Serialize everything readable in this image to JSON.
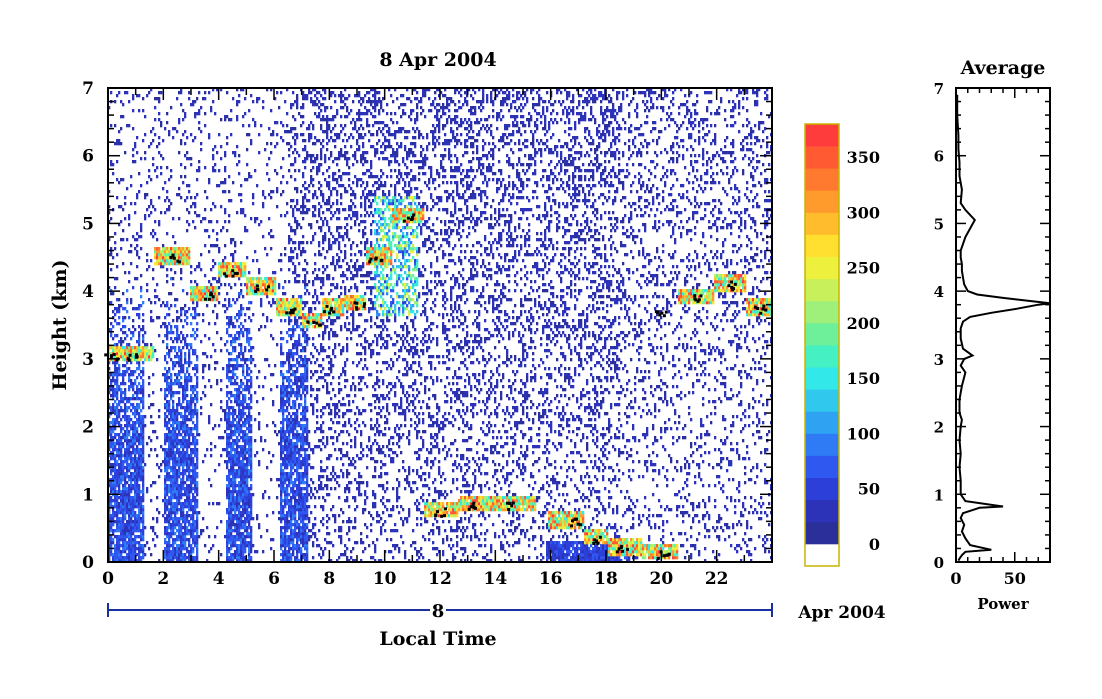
{
  "chart_data": [
    {
      "type": "heatmap",
      "title": "8 Apr 2004",
      "xlabel": "Local Time",
      "ylabel": "Height (km)",
      "xlim": [
        0,
        24
      ],
      "ylim": [
        0,
        7
      ],
      "x_ticks": [
        "0",
        "2",
        "4",
        "6",
        "8",
        "10",
        "12",
        "14",
        "16",
        "18",
        "20",
        "22"
      ],
      "y_ticks": [
        "0",
        "1",
        "2",
        "3",
        "4",
        "5",
        "6",
        "7"
      ],
      "date_axis": {
        "day_label": "8",
        "month_label": "Apr 2004"
      },
      "colorbar": {
        "ticks": [
          "0",
          "50",
          "100",
          "150",
          "200",
          "250",
          "300",
          "350"
        ],
        "range": [
          0,
          380
        ],
        "colors": [
          "#ffffff",
          "#2b2f9a",
          "#2d33b8",
          "#2c3fd8",
          "#2f58f0",
          "#2f7bf5",
          "#2fa2f2",
          "#31c8ee",
          "#33e8e8",
          "#45f0c2",
          "#6ef09b",
          "#9ef07a",
          "#c8f05a",
          "#eef03e",
          "#ffe030",
          "#ffbc2c",
          "#ff9a2c",
          "#ff7a2e",
          "#ff5a32",
          "#ff3c3c"
        ]
      },
      "layers": {
        "cloud_band_height_km": [
          {
            "x": 0.1,
            "y": 3.05
          },
          {
            "x": 0.8,
            "y": 3.05
          },
          {
            "x": 2.4,
            "y": 4.5
          },
          {
            "x": 3.5,
            "y": 3.95
          },
          {
            "x": 4.4,
            "y": 4.3
          },
          {
            "x": 5.5,
            "y": 4.05
          },
          {
            "x": 6.5,
            "y": 3.75
          },
          {
            "x": 7.4,
            "y": 3.55
          },
          {
            "x": 8.0,
            "y": 3.75
          },
          {
            "x": 9.0,
            "y": 3.8
          },
          {
            "x": 9.6,
            "y": 4.5
          },
          {
            "x": 10.8,
            "y": 5.1
          },
          {
            "x": 12.0,
            "y": 0.75
          },
          {
            "x": 13.2,
            "y": 0.85
          },
          {
            "x": 14.5,
            "y": 0.85
          },
          {
            "x": 16.8,
            "y": 0.6
          },
          {
            "x": 17.5,
            "y": 0.35
          },
          {
            "x": 18.5,
            "y": 0.2
          },
          {
            "x": 20.0,
            "y": 0.12
          },
          {
            "x": 20.0,
            "y": 3.7
          },
          {
            "x": 21.2,
            "y": 3.9
          },
          {
            "x": 22.5,
            "y": 4.1
          },
          {
            "x": 23.5,
            "y": 3.75
          }
        ]
      }
    },
    {
      "type": "line",
      "title": "Average",
      "xlabel": "Power",
      "ylabel": "",
      "xlim": [
        0,
        80
      ],
      "ylim": [
        0,
        7
      ],
      "x_ticks": [
        "0",
        "50"
      ],
      "y_ticks": [
        "0",
        "1",
        "2",
        "3",
        "4",
        "5",
        "6",
        "7"
      ],
      "x": [
        2,
        3,
        5,
        8,
        30,
        12,
        8,
        5,
        7,
        4,
        6,
        20,
        40,
        8,
        4,
        4,
        3,
        4,
        3,
        4,
        5,
        3,
        3,
        5,
        8,
        4,
        7,
        14,
        6,
        4,
        4,
        6,
        12,
        30,
        52,
        70,
        80,
        65,
        40,
        18,
        10,
        7,
        6,
        5,
        5,
        4,
        4,
        8,
        16,
        8,
        4,
        5,
        3,
        3,
        2,
        2,
        1,
        1
      ],
      "y": [
        0.02,
        0.05,
        0.1,
        0.15,
        0.18,
        0.25,
        0.35,
        0.45,
        0.55,
        0.65,
        0.72,
        0.8,
        0.82,
        0.9,
        1.0,
        1.2,
        1.4,
        1.6,
        1.8,
        2.0,
        2.1,
        2.2,
        2.4,
        2.6,
        2.8,
        2.9,
        3.0,
        3.05,
        3.15,
        3.3,
        3.45,
        3.55,
        3.62,
        3.68,
        3.74,
        3.8,
        3.82,
        3.85,
        3.9,
        3.95,
        4.0,
        4.1,
        4.2,
        4.3,
        4.4,
        4.5,
        4.6,
        4.8,
        5.05,
        5.2,
        5.3,
        5.5,
        5.7,
        5.9,
        6.1,
        6.3,
        6.6,
        6.9
      ]
    }
  ]
}
